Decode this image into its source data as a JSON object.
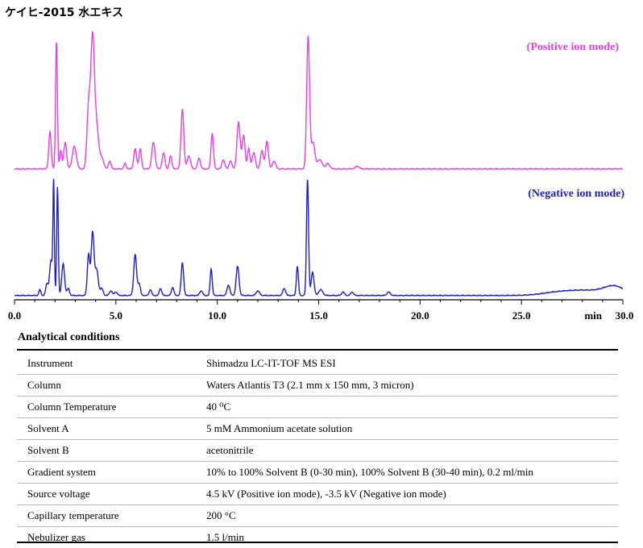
{
  "title": "ケイヒ-2015 水エキス",
  "chart_data": {
    "type": "line",
    "xlim": [
      0,
      30
    ],
    "x_ticks": [
      "0.0",
      "5.0",
      "10.0",
      "15.0",
      "20.0",
      "25.0"
    ],
    "x_unit_label": "min",
    "x_end_label": "30.0",
    "series": [
      {
        "name": "(Positive ion mode)",
        "color": "#e83de8",
        "baseline": 0.0,
        "peaks": [
          [
            1.75,
            0.28,
            0.06
          ],
          [
            2.07,
            0.96,
            0.045
          ],
          [
            2.28,
            0.14,
            0.05
          ],
          [
            2.5,
            0.2,
            0.07
          ],
          [
            2.95,
            0.17,
            0.1
          ],
          [
            3.65,
            0.45,
            0.08
          ],
          [
            3.85,
            0.97,
            0.09
          ],
          [
            4.05,
            0.3,
            0.1
          ],
          [
            4.3,
            0.08,
            0.1
          ],
          [
            4.7,
            0.06,
            0.06
          ],
          [
            5.45,
            0.04,
            0.06
          ],
          [
            5.95,
            0.15,
            0.07
          ],
          [
            6.2,
            0.15,
            0.06
          ],
          [
            6.85,
            0.2,
            0.08
          ],
          [
            7.35,
            0.12,
            0.07
          ],
          [
            7.7,
            0.1,
            0.06
          ],
          [
            8.28,
            0.45,
            0.07
          ],
          [
            8.6,
            0.1,
            0.08
          ],
          [
            9.1,
            0.08,
            0.07
          ],
          [
            9.75,
            0.27,
            0.06
          ],
          [
            10.3,
            0.07,
            0.07
          ],
          [
            10.65,
            0.06,
            0.07
          ],
          [
            11.05,
            0.35,
            0.08
          ],
          [
            11.3,
            0.25,
            0.07
          ],
          [
            11.55,
            0.15,
            0.06
          ],
          [
            11.8,
            0.12,
            0.08
          ],
          [
            12.2,
            0.14,
            0.07
          ],
          [
            12.45,
            0.21,
            0.07
          ],
          [
            12.8,
            0.06,
            0.08
          ],
          [
            14.48,
            1.0,
            0.07
          ],
          [
            14.72,
            0.2,
            0.09
          ],
          [
            15.05,
            0.07,
            0.12
          ],
          [
            15.45,
            0.04,
            0.1
          ],
          [
            16.9,
            0.02,
            0.1
          ]
        ]
      },
      {
        "name": "(Negative ion mode)",
        "color": "#1d1dd0",
        "baseline": 0.0,
        "peaks": [
          [
            1.25,
            0.05,
            0.05
          ],
          [
            1.6,
            0.1,
            0.06
          ],
          [
            1.8,
            0.3,
            0.07
          ],
          [
            1.93,
            0.95,
            0.035
          ],
          [
            2.12,
            0.93,
            0.04
          ],
          [
            2.4,
            0.27,
            0.07
          ],
          [
            2.65,
            0.06,
            0.06
          ],
          [
            3.65,
            0.35,
            0.06
          ],
          [
            3.85,
            0.54,
            0.07
          ],
          [
            4.05,
            0.22,
            0.08
          ],
          [
            4.3,
            0.06,
            0.07
          ],
          [
            4.75,
            0.04,
            0.07
          ],
          [
            5.0,
            0.03,
            0.07
          ],
          [
            5.95,
            0.35,
            0.07
          ],
          [
            6.15,
            0.1,
            0.06
          ],
          [
            6.7,
            0.05,
            0.06
          ],
          [
            7.2,
            0.06,
            0.06
          ],
          [
            7.8,
            0.07,
            0.06
          ],
          [
            8.28,
            0.28,
            0.06
          ],
          [
            9.2,
            0.04,
            0.07
          ],
          [
            9.7,
            0.23,
            0.05
          ],
          [
            10.55,
            0.09,
            0.07
          ],
          [
            11.0,
            0.25,
            0.07
          ],
          [
            12.0,
            0.04,
            0.08
          ],
          [
            13.3,
            0.06,
            0.07
          ],
          [
            13.95,
            0.25,
            0.05
          ],
          [
            14.45,
            1.0,
            0.05
          ],
          [
            14.7,
            0.2,
            0.07
          ],
          [
            15.1,
            0.05,
            0.1
          ],
          [
            16.2,
            0.03,
            0.07
          ],
          [
            16.65,
            0.03,
            0.07
          ],
          [
            18.45,
            0.03,
            0.08
          ],
          [
            26.8,
            0.025,
            0.8
          ],
          [
            28.3,
            0.04,
            0.9
          ],
          [
            29.6,
            0.07,
            0.5
          ]
        ]
      }
    ]
  },
  "conditions": {
    "heading": "Analytical conditions",
    "rows": [
      {
        "label": "Instrument",
        "value": "Shimadzu LC-IT-TOF MS ESI"
      },
      {
        "label": "Column",
        "value": "Waters Atlantis T3 (2.1 mm x 150 mm, 3 micron)"
      },
      {
        "label": "Column Temperature",
        "value": "40 ⁰C"
      },
      {
        "label": "Solvent A",
        "value": "5 mM Ammonium acetate solution"
      },
      {
        "label": "Solvent B",
        "value": "acetonitrile"
      },
      {
        "label": "Gradient system",
        "value": "10% to 100% Solvent B (0-30 min), 100% Solvent B (30-40 min), 0.2 ml/min"
      },
      {
        "label": "Source voltage",
        "value": "4.5 kV (Positive ion mode), -3.5 kV (Negative ion mode)"
      },
      {
        "label": "Capillary temperature",
        "value": "200 °C"
      },
      {
        "label": "Nebulizer gas",
        "value": "1.5 l/min"
      }
    ]
  }
}
